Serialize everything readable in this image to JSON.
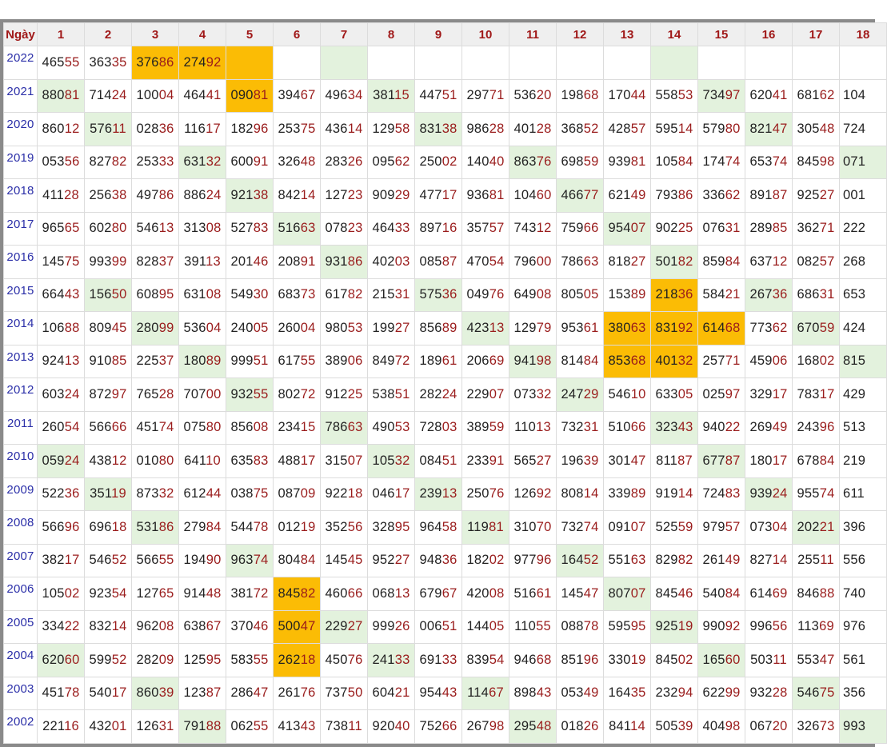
{
  "header": {
    "first_col": "Ngày",
    "days": [
      "1",
      "2",
      "3",
      "4",
      "5",
      "6",
      "7",
      "8",
      "9",
      "10",
      "11",
      "12",
      "13",
      "14",
      "15",
      "16",
      "17",
      "18"
    ]
  },
  "colors": {
    "green_highlight": "#e3f2dd",
    "orange_highlight": "#fbbc05",
    "year": "#2b2fa8",
    "last_two_digits": "#9a1c1c"
  },
  "rows": [
    {
      "year": "2022",
      "cells": [
        "46555",
        "36335",
        "37686",
        "27492",
        "",
        "",
        "",
        "",
        "",
        "",
        "",
        "",
        "",
        "",
        "",
        "",
        "",
        ""
      ],
      "green": [
        7,
        14
      ],
      "orange": [
        3,
        4,
        5
      ]
    },
    {
      "year": "2021",
      "cells": [
        "88081",
        "71424",
        "10004",
        "46441",
        "09081",
        "39467",
        "49634",
        "38115",
        "44751",
        "29771",
        "53620",
        "19868",
        "17044",
        "55853",
        "73497",
        "62041",
        "68162",
        "104"
      ],
      "green": [
        1,
        8,
        15
      ],
      "orange": [
        5
      ]
    },
    {
      "year": "2020",
      "cells": [
        "86012",
        "57611",
        "02836",
        "11617",
        "18296",
        "25375",
        "43614",
        "12958",
        "83138",
        "98628",
        "40128",
        "36852",
        "42857",
        "59514",
        "57980",
        "82147",
        "30548",
        "724"
      ],
      "green": [
        2,
        9,
        16
      ],
      "orange": []
    },
    {
      "year": "2019",
      "cells": [
        "05356",
        "82782",
        "25333",
        "63132",
        "60091",
        "32648",
        "28326",
        "09562",
        "25002",
        "14040",
        "86376",
        "69859",
        "93981",
        "10584",
        "17474",
        "65374",
        "84598",
        "071"
      ],
      "green": [
        4,
        11,
        18
      ],
      "orange": []
    },
    {
      "year": "2018",
      "cells": [
        "41128",
        "25638",
        "49786",
        "88624",
        "92138",
        "84214",
        "12723",
        "90929",
        "47717",
        "93681",
        "10460",
        "46677",
        "62149",
        "79386",
        "33662",
        "89187",
        "92527",
        "001"
      ],
      "green": [
        5,
        12
      ],
      "orange": []
    },
    {
      "year": "2017",
      "cells": [
        "96565",
        "60280",
        "54613",
        "31308",
        "52783",
        "51663",
        "07823",
        "46433",
        "89716",
        "35757",
        "74312",
        "75966",
        "95407",
        "90225",
        "07631",
        "28985",
        "36271",
        "222"
      ],
      "green": [
        6,
        13
      ],
      "orange": []
    },
    {
      "year": "2016",
      "cells": [
        "14575",
        "99399",
        "82837",
        "39113",
        "20146",
        "20891",
        "93186",
        "40203",
        "08587",
        "47054",
        "79600",
        "78663",
        "81827",
        "50182",
        "85984",
        "63712",
        "08257",
        "268"
      ],
      "green": [
        7,
        14
      ],
      "orange": []
    },
    {
      "year": "2015",
      "cells": [
        "66443",
        "15650",
        "60895",
        "63108",
        "54930",
        "68373",
        "61782",
        "21531",
        "57536",
        "04976",
        "64908",
        "80505",
        "15389",
        "21836",
        "58421",
        "26736",
        "68631",
        "653"
      ],
      "green": [
        2,
        9,
        16
      ],
      "orange": [
        14
      ]
    },
    {
      "year": "2014",
      "cells": [
        "10688",
        "80945",
        "28099",
        "53604",
        "24005",
        "26004",
        "98053",
        "19927",
        "85689",
        "42313",
        "12979",
        "95361",
        "38063",
        "83192",
        "61468",
        "77362",
        "67059",
        "424"
      ],
      "green": [
        3,
        10,
        17
      ],
      "orange": [
        13,
        14,
        15
      ]
    },
    {
      "year": "2013",
      "cells": [
        "92413",
        "91085",
        "22537",
        "18089",
        "99951",
        "61755",
        "38906",
        "84972",
        "18961",
        "20669",
        "94198",
        "81484",
        "85368",
        "40132",
        "25771",
        "45906",
        "16802",
        "815"
      ],
      "green": [
        4,
        11,
        18
      ],
      "orange": [
        13,
        14
      ]
    },
    {
      "year": "2012",
      "cells": [
        "60324",
        "87297",
        "76528",
        "70700",
        "93255",
        "80272",
        "91225",
        "53851",
        "28224",
        "22907",
        "07332",
        "24729",
        "54610",
        "63305",
        "02597",
        "32917",
        "78317",
        "429"
      ],
      "green": [
        5,
        12
      ],
      "orange": []
    },
    {
      "year": "2011",
      "cells": [
        "26054",
        "56666",
        "45174",
        "07580",
        "85608",
        "23415",
        "78663",
        "49053",
        "72803",
        "38959",
        "11013",
        "73231",
        "51066",
        "32343",
        "94022",
        "26949",
        "24396",
        "513"
      ],
      "green": [
        7,
        14
      ],
      "orange": []
    },
    {
      "year": "2010",
      "cells": [
        "05924",
        "43812",
        "01080",
        "64110",
        "63583",
        "48817",
        "31507",
        "10532",
        "08451",
        "23391",
        "56527",
        "19639",
        "30147",
        "81187",
        "67787",
        "18017",
        "67884",
        "219"
      ],
      "green": [
        1,
        8,
        15
      ],
      "orange": []
    },
    {
      "year": "2009",
      "cells": [
        "52236",
        "35119",
        "87332",
        "61244",
        "03875",
        "08709",
        "92218",
        "04617",
        "23913",
        "25076",
        "12692",
        "80814",
        "33989",
        "91914",
        "72483",
        "93924",
        "95574",
        "611"
      ],
      "green": [
        2,
        9,
        16
      ],
      "orange": []
    },
    {
      "year": "2008",
      "cells": [
        "56696",
        "69618",
        "53186",
        "27984",
        "54478",
        "01219",
        "35256",
        "32895",
        "96458",
        "11981",
        "31070",
        "73274",
        "09107",
        "52559",
        "97957",
        "07304",
        "20221",
        "396"
      ],
      "green": [
        3,
        10,
        17
      ],
      "orange": []
    },
    {
      "year": "2007",
      "cells": [
        "38217",
        "54652",
        "56655",
        "19490",
        "96374",
        "80484",
        "14545",
        "95227",
        "94836",
        "18202",
        "97796",
        "16452",
        "55163",
        "82982",
        "26149",
        "82714",
        "25511",
        "556"
      ],
      "green": [
        5,
        12
      ],
      "orange": []
    },
    {
      "year": "2006",
      "cells": [
        "10502",
        "92354",
        "12765",
        "91448",
        "38172",
        "84582",
        "46066",
        "06813",
        "67967",
        "42008",
        "51661",
        "14547",
        "80707",
        "84546",
        "54084",
        "61469",
        "84688",
        "740"
      ],
      "green": [
        13
      ],
      "orange": [
        6
      ]
    },
    {
      "year": "2005",
      "cells": [
        "33422",
        "83214",
        "96208",
        "63867",
        "37046",
        "50047",
        "22927",
        "99926",
        "00651",
        "14405",
        "11055",
        "08878",
        "59595",
        "92519",
        "99092",
        "99656",
        "11369",
        "976"
      ],
      "green": [
        7,
        14
      ],
      "orange": [
        6
      ]
    },
    {
      "year": "2004",
      "cells": [
        "62060",
        "59952",
        "28209",
        "12595",
        "58355",
        "26218",
        "45076",
        "24133",
        "69133",
        "83954",
        "94668",
        "85196",
        "33019",
        "84502",
        "16560",
        "50311",
        "55347",
        "561"
      ],
      "green": [
        1,
        8,
        15
      ],
      "orange": [
        6
      ]
    },
    {
      "year": "2003",
      "cells": [
        "45178",
        "54017",
        "86039",
        "12387",
        "28647",
        "26176",
        "73750",
        "60421",
        "95443",
        "11467",
        "89843",
        "05349",
        "16435",
        "23294",
        "62299",
        "93228",
        "54675",
        "356"
      ],
      "green": [
        3,
        10,
        17
      ],
      "orange": []
    },
    {
      "year": "2002",
      "cells": [
        "22116",
        "43201",
        "12631",
        "79188",
        "06255",
        "41343",
        "73811",
        "92040",
        "75266",
        "26798",
        "29548",
        "01826",
        "84114",
        "50539",
        "40498",
        "06720",
        "32673",
        "993"
      ],
      "green": [
        4,
        11,
        18
      ],
      "orange": []
    }
  ]
}
